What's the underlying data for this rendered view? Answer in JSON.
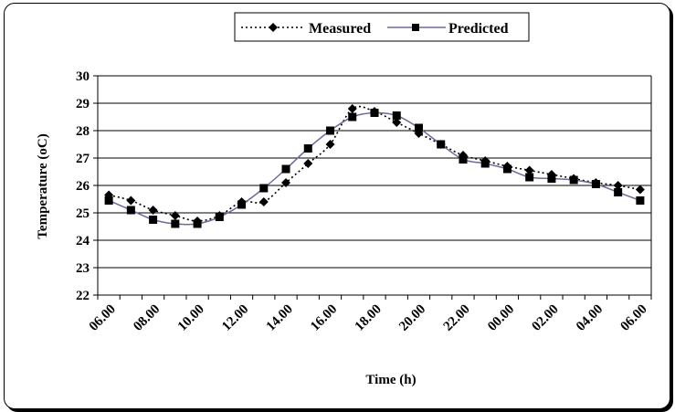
{
  "chart_data": {
    "type": "line",
    "title": "",
    "xlabel": "Time (h)",
    "ylabel": "Temperature (oC)",
    "ylim": [
      22,
      30
    ],
    "yticks": [
      "22",
      "23",
      "24",
      "25",
      "26",
      "27",
      "28",
      "29",
      "30"
    ],
    "x_tick_labels": [
      "06.00",
      "08.00",
      "10.00",
      "12.00",
      "14.00",
      "16.00",
      "18.00",
      "20.00",
      "22.00",
      "00.00",
      "02.00",
      "04.00",
      "06.00"
    ],
    "grid": "horizontal",
    "legend_position": "top",
    "series": [
      {
        "name": "Measured",
        "style": "dotted",
        "marker": "diamond",
        "color": "#000000",
        "values": [
          25.65,
          25.45,
          25.1,
          24.9,
          24.7,
          24.9,
          25.4,
          25.4,
          26.1,
          26.8,
          27.5,
          28.8,
          28.7,
          28.3,
          27.9,
          27.5,
          27.1,
          26.9,
          26.7,
          26.55,
          26.4,
          26.25,
          26.1,
          26.0,
          25.85
        ]
      },
      {
        "name": "Predicted",
        "style": "solid",
        "marker": "square",
        "color": "#6b6b9e",
        "values": [
          25.45,
          25.1,
          24.75,
          24.6,
          24.6,
          24.85,
          25.3,
          25.9,
          26.6,
          27.35,
          28.0,
          28.5,
          28.65,
          28.55,
          28.1,
          27.5,
          26.95,
          26.8,
          26.6,
          26.3,
          26.25,
          26.2,
          26.05,
          25.75,
          25.45
        ]
      }
    ]
  }
}
